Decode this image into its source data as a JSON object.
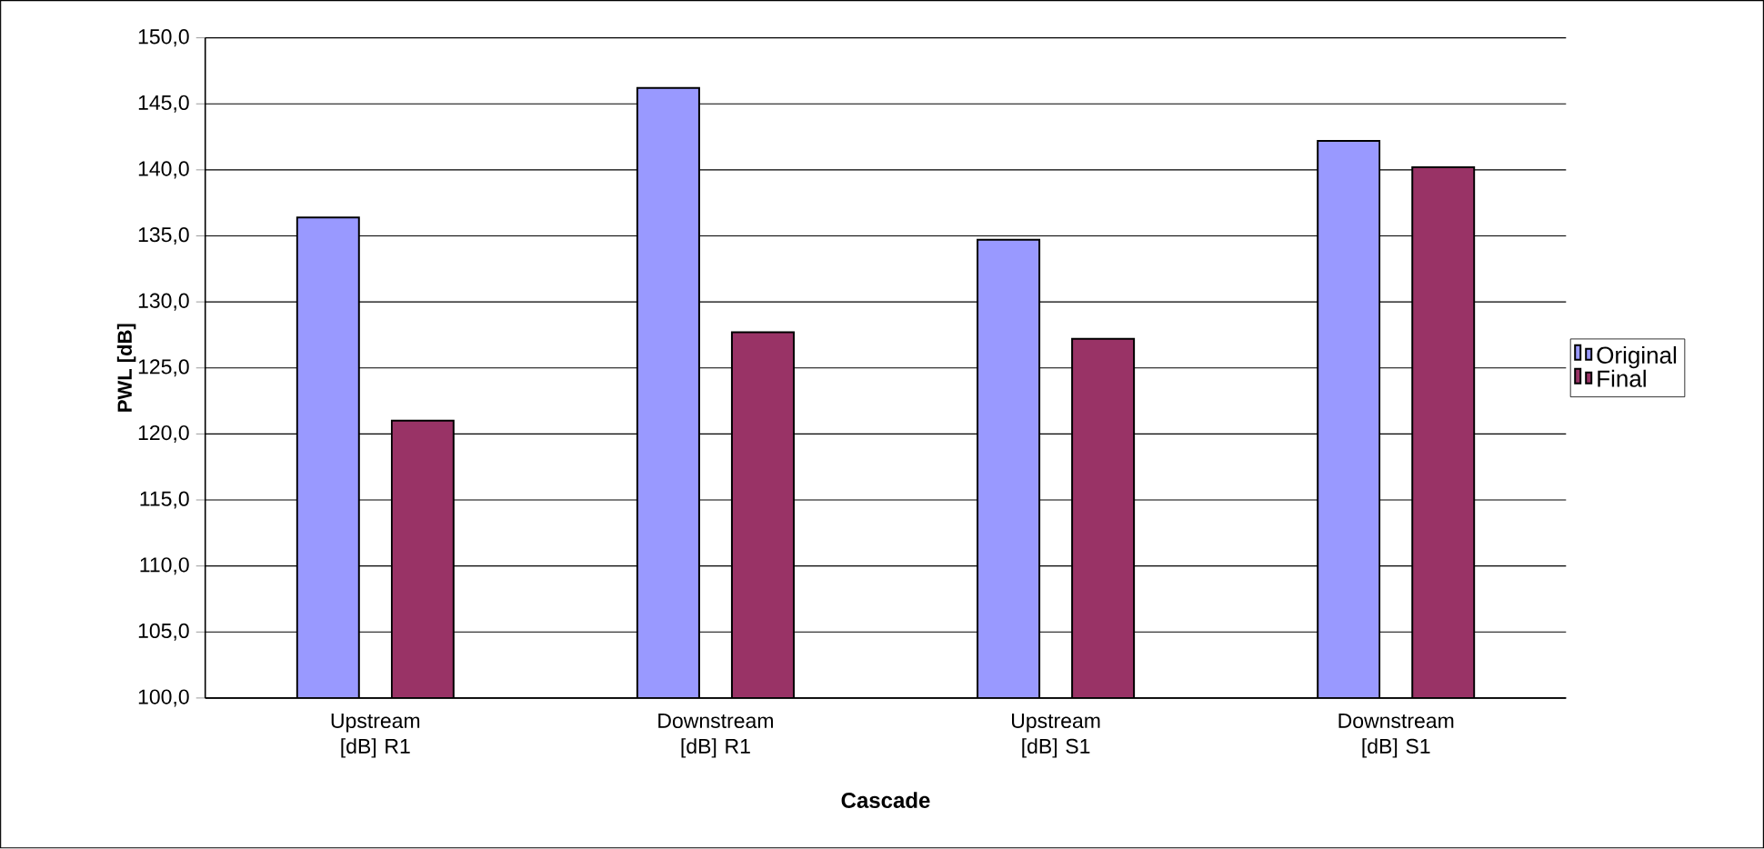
{
  "chart_data": {
    "type": "bar",
    "xlabel": "Cascade",
    "ylabel": "PWL [dB]",
    "categories": [
      "Upstream [dB] R1",
      "Downstream [dB] R1",
      "Upstream [dB] S1",
      "Downstream [dB] S1"
    ],
    "series": [
      {
        "name": "Original",
        "color": "#9999ff",
        "values": [
          136.4,
          146.2,
          134.7,
          142.2
        ]
      },
      {
        "name": "Final",
        "color": "#993366",
        "values": [
          121.0,
          127.7,
          127.2,
          140.2
        ]
      }
    ],
    "ylim": [
      100,
      150
    ],
    "yticks": [
      {
        "value": 100,
        "label": "100,0"
      },
      {
        "value": 105,
        "label": "105,0"
      },
      {
        "value": 110,
        "label": "110,0"
      },
      {
        "value": 115,
        "label": "115,0"
      },
      {
        "value": 120,
        "label": "120,0"
      },
      {
        "value": 125,
        "label": "125,0"
      },
      {
        "value": 130,
        "label": "130,0"
      },
      {
        "value": 135,
        "label": "135,0"
      },
      {
        "value": 140,
        "label": "140,0"
      },
      {
        "value": 145,
        "label": "145,0"
      },
      {
        "value": 150,
        "label": "150,0"
      }
    ],
    "grid": "y",
    "legend": "right"
  }
}
